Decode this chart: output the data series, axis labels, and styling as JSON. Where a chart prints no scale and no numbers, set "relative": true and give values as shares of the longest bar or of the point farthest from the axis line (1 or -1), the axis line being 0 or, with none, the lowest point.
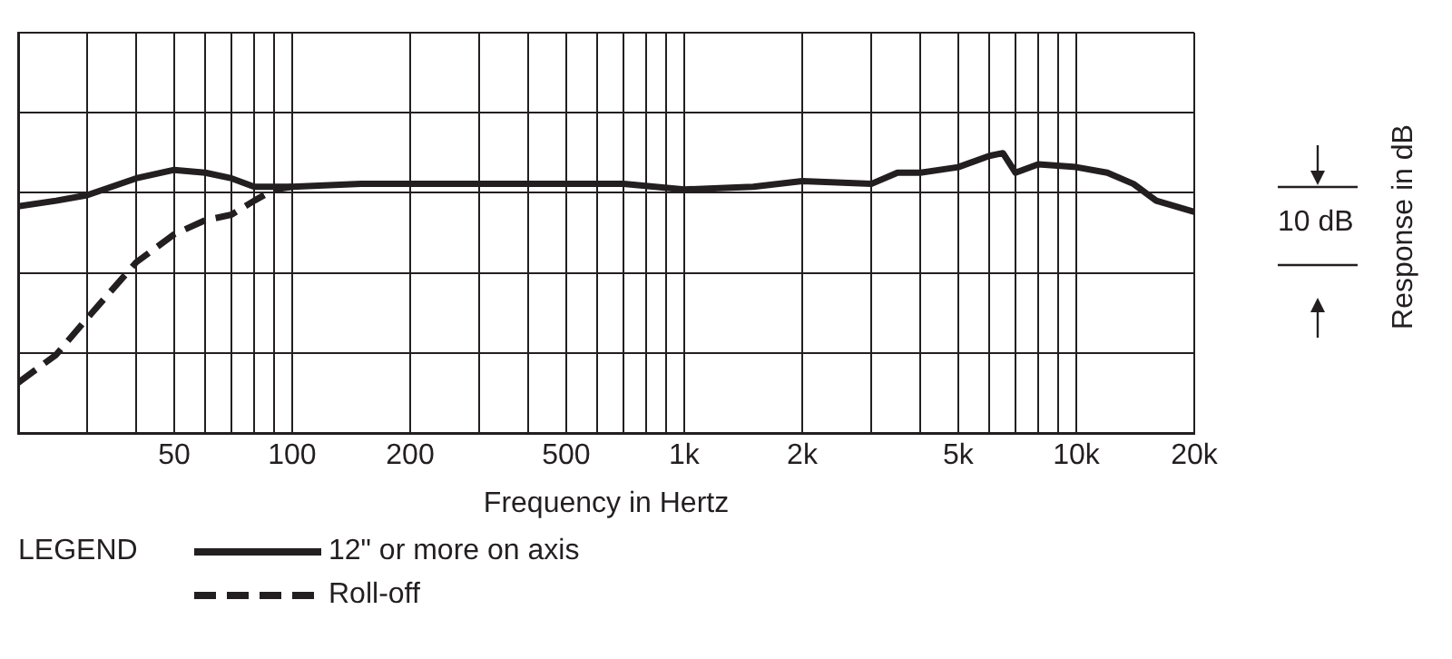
{
  "chart_data": {
    "type": "line",
    "relative": true,
    "xlabel": "Frequency in Hertz",
    "legend_title": "LEGEND",
    "legend": "bottom left",
    "grid": true,
    "log": "x",
    "marker": "none",
    "xlim": [
      20,
      20000
    ],
    "xticks": [
      {
        "value": 20,
        "label": null
      },
      {
        "value": 30,
        "label": null
      },
      {
        "value": 40,
        "label": null
      },
      50,
      {
        "value": 60,
        "label": null
      },
      {
        "value": 70,
        "label": null
      },
      {
        "value": 80,
        "label": null
      },
      {
        "value": 90,
        "label": null
      },
      100,
      200,
      {
        "value": 300,
        "label": null
      },
      {
        "value": 400,
        "label": null
      },
      500,
      {
        "value": 600,
        "label": null
      },
      {
        "value": 700,
        "label": null
      },
      {
        "value": 800,
        "label": null
      },
      {
        "value": 900,
        "label": null
      },
      {
        "value": 1000,
        "label": "1k"
      },
      {
        "value": 2000,
        "label": "2k"
      },
      {
        "value": 3000,
        "label": null
      },
      {
        "value": 4000,
        "label": null
      },
      {
        "value": 5000,
        "label": "5k"
      },
      {
        "value": 6000,
        "label": null
      },
      {
        "value": 7000,
        "label": null
      },
      {
        "value": 8000,
        "label": null
      },
      {
        "value": 9000,
        "label": null
      },
      {
        "value": 10000,
        "label": "10k"
      },
      {
        "value": 20000,
        "label": "20k"
      }
    ],
    "annotations": [
      "10 dB",
      "Response in dB"
    ],
    "series": [
      {
        "name": "12\" or more on axis",
        "color": "#231f20",
        "line_style": "solid",
        "x": [
          20,
          25,
          30,
          40,
          50,
          60,
          70,
          80,
          100,
          150,
          200,
          300,
          500,
          700,
          1000,
          1500,
          2000,
          3000,
          3500,
          4000,
          5000,
          6000,
          6500,
          7000,
          8000,
          10000,
          12000,
          14000,
          16000,
          20000
        ],
        "values": [
          0.81,
          0.83,
          0.85,
          0.91,
          0.94,
          0.93,
          0.91,
          0.88,
          0.88,
          0.89,
          0.89,
          0.89,
          0.89,
          0.89,
          0.87,
          0.88,
          0.9,
          0.89,
          0.93,
          0.93,
          0.95,
          0.99,
          1.0,
          0.93,
          0.96,
          0.95,
          0.93,
          0.89,
          0.83,
          0.79
        ]
      },
      {
        "name": "Roll-off",
        "color": "#231f20",
        "line_style": "dashed",
        "x": [
          20,
          25,
          30,
          40,
          50,
          60,
          70,
          80,
          90,
          100
        ],
        "values": [
          0.18,
          0.28,
          0.41,
          0.61,
          0.71,
          0.76,
          0.78,
          0.83,
          0.87,
          0.88
        ]
      }
    ]
  }
}
